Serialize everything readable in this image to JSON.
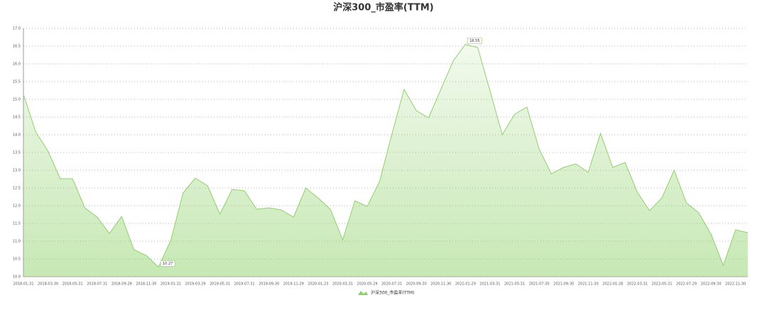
{
  "chart_data": {
    "type": "area",
    "title": "沪深300_市盈率(TTM)",
    "categories": [
      "2018-01-31",
      null,
      "2018-03-30",
      null,
      "2018-05-31",
      null,
      "2018-07-31",
      null,
      "2018-09-28",
      null,
      "2018-11-30",
      null,
      "2019-01-31",
      null,
      "2019-03-29",
      null,
      "2019-05-31",
      null,
      "2019-07-31",
      null,
      "2019-09-30",
      null,
      "2019-11-29",
      null,
      "2020-01-23",
      null,
      "2020-03-31",
      null,
      "2020-05-29",
      null,
      "2020-07-31",
      null,
      "2020-09-30",
      null,
      "2020-11-30",
      null,
      "2021-01-29",
      null,
      "2021-03-31",
      null,
      "2021-05-31",
      null,
      "2021-07-30",
      null,
      "2021-09-30",
      null,
      "2021-11-30",
      null,
      "2022-01-28",
      null,
      "2022-03-31",
      null,
      "2022-05-31",
      null,
      "2022-07-29",
      null,
      "2022-09-30",
      null,
      "2022-11-30",
      null
    ],
    "series": [
      {
        "name": "沪深300_市盈率(TTM)",
        "color": "#8fd16a",
        "values": [
          15.14,
          14.08,
          13.54,
          12.76,
          12.76,
          11.94,
          11.68,
          11.22,
          11.7,
          10.76,
          10.6,
          10.27,
          11.02,
          12.36,
          12.78,
          12.56,
          11.76,
          12.46,
          12.42,
          11.9,
          11.94,
          11.88,
          11.68,
          12.5,
          12.22,
          11.9,
          11.04,
          12.14,
          11.98,
          12.68,
          14.0,
          15.28,
          14.68,
          14.48,
          15.28,
          16.08,
          16.55,
          16.46,
          15.24,
          14.0,
          14.58,
          14.78,
          13.6,
          12.9,
          13.08,
          13.18,
          12.94,
          14.04,
          13.08,
          13.22,
          12.38,
          11.86,
          12.22,
          13.0,
          12.08,
          11.8,
          11.2,
          10.32,
          11.32,
          11.24
        ],
        "value_labels": [
          null,
          null,
          null,
          null,
          null,
          null,
          null,
          null,
          null,
          null,
          null,
          "10.27",
          null,
          null,
          null,
          null,
          null,
          null,
          null,
          null,
          null,
          null,
          null,
          null,
          null,
          null,
          null,
          null,
          null,
          null,
          null,
          null,
          null,
          null,
          null,
          null,
          "16.55",
          null,
          null,
          null,
          null,
          null,
          null,
          null,
          null,
          null,
          null,
          null,
          null,
          null,
          null,
          null,
          null,
          null,
          null,
          null,
          null,
          null,
          null,
          null
        ]
      }
    ],
    "ylim": [
      10.0,
      17.0
    ],
    "yticks": [
      {
        "value": 10,
        "label": "10.0"
      },
      {
        "value": 10.5,
        "label": "10.5"
      },
      {
        "value": 11,
        "label": "11.0"
      },
      {
        "value": 11.5,
        "label": "11.5"
      },
      {
        "value": 12,
        "label": "12.0"
      },
      {
        "value": 12.5,
        "label": "12.5"
      },
      {
        "value": 13,
        "label": "13.0"
      },
      {
        "value": 13.5,
        "label": "13.5"
      },
      {
        "value": 14,
        "label": "14.0"
      },
      {
        "value": 14.5,
        "label": "14.5"
      },
      {
        "value": 15,
        "label": "15.0"
      },
      {
        "value": 15.5,
        "label": "15.5"
      },
      {
        "value": 16,
        "label": "16.0"
      },
      {
        "value": 16.5,
        "label": "16.5"
      },
      {
        "value": 17,
        "label": "17.0"
      }
    ],
    "grid": true,
    "legend": "bottom"
  }
}
